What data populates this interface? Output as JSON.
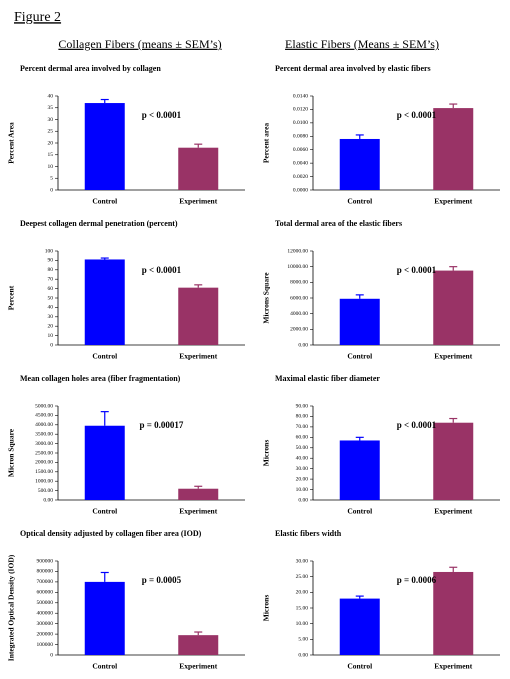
{
  "title": "Figure 2",
  "column_headers": [
    "Collagen Fibers (means ± SEM’s)",
    "Elastic Fibers (Means ± SEM’s)"
  ],
  "chart_data": [
    {
      "type": "bar",
      "title": "Percent dermal area involved by collagen",
      "ylabel": "Percent Area",
      "categories": [
        "Control",
        "Experiment"
      ],
      "values": [
        37,
        18
      ],
      "errors": [
        1.5,
        1.5
      ],
      "colors": [
        "#0000ff",
        "#993366"
      ],
      "annotation": "p < 0.0001",
      "ylim": [
        0,
        40
      ],
      "yticks": [
        0,
        5,
        10,
        15,
        20,
        25,
        30,
        35,
        40
      ]
    },
    {
      "type": "bar",
      "title": "Percent dermal area involved by elastic fibers",
      "ylabel": "Percent area",
      "categories": [
        "Control",
        "Experiment"
      ],
      "values": [
        0.0076,
        0.0122
      ],
      "errors": [
        0.0006,
        0.0006
      ],
      "colors": [
        "#0000ff",
        "#993366"
      ],
      "annotation": "p < 0.0001",
      "ylim": [
        0,
        0.014
      ],
      "yticks": [
        {
          "value": 0,
          "label": "0.0000"
        },
        {
          "value": 0.002,
          "label": "0.0020"
        },
        {
          "value": 0.004,
          "label": "0.0040"
        },
        {
          "value": 0.006,
          "label": "0.0060"
        },
        {
          "value": 0.008,
          "label": "0.0080"
        },
        {
          "value": 0.01,
          "label": "0.0100"
        },
        {
          "value": 0.012,
          "label": "0.0120"
        },
        {
          "value": 0.014,
          "label": "0.0140"
        }
      ]
    },
    {
      "type": "bar",
      "title": "Deepest collagen dermal penetration (percent)",
      "ylabel": "Percent",
      "categories": [
        "Control",
        "Experiment"
      ],
      "values": [
        91,
        61
      ],
      "errors": [
        1.5,
        3
      ],
      "colors": [
        "#0000ff",
        "#993366"
      ],
      "annotation": "p < 0.0001",
      "ylim": [
        0,
        100
      ],
      "yticks": [
        0,
        10,
        20,
        30,
        40,
        50,
        60,
        70,
        80,
        90,
        100
      ]
    },
    {
      "type": "bar",
      "title": "Total dermal area of the elastic fibers",
      "ylabel": "Microns Square",
      "categories": [
        "Control",
        "Experiment"
      ],
      "values": [
        5900,
        9500
      ],
      "errors": [
        500,
        500
      ],
      "colors": [
        "#0000ff",
        "#993366"
      ],
      "annotation": "p < 0.0001",
      "ylim": [
        0,
        12000
      ],
      "yticks": [
        {
          "value": 0,
          "label": "0.00"
        },
        {
          "value": 2000,
          "label": "2000.00"
        },
        {
          "value": 4000,
          "label": "4000.00"
        },
        {
          "value": 6000,
          "label": "6000.00"
        },
        {
          "value": 8000,
          "label": "8000.00"
        },
        {
          "value": 10000,
          "label": "10000.00"
        },
        {
          "value": 12000,
          "label": "12000.00"
        }
      ]
    },
    {
      "type": "bar",
      "title": "Mean collagen holes area (fiber fragmentation)",
      "ylabel": "Micron Square",
      "categories": [
        "Control",
        "Experiment"
      ],
      "values": [
        3950,
        600
      ],
      "errors": [
        750,
        130
      ],
      "colors": [
        "#0000ff",
        "#993366"
      ],
      "annotation": "p = 0.00017",
      "ylim": [
        0,
        5000
      ],
      "yticks": [
        {
          "value": 0,
          "label": "0.00"
        },
        {
          "value": 500,
          "label": "500.00"
        },
        {
          "value": 1000,
          "label": "1000.00"
        },
        {
          "value": 1500,
          "label": "1500.00"
        },
        {
          "value": 2000,
          "label": "2000.00"
        },
        {
          "value": 2500,
          "label": "2500.00"
        },
        {
          "value": 3000,
          "label": "3000.00"
        },
        {
          "value": 3500,
          "label": "3500.00"
        },
        {
          "value": 4000,
          "label": "4000.00"
        },
        {
          "value": 4500,
          "label": "4500.00"
        },
        {
          "value": 5000,
          "label": "5000.00"
        }
      ]
    },
    {
      "type": "bar",
      "title": "Maximal elastic fiber diameter",
      "ylabel": "Microns",
      "categories": [
        "Control",
        "Experiment"
      ],
      "values": [
        57,
        74
      ],
      "errors": [
        3,
        4
      ],
      "colors": [
        "#0000ff",
        "#993366"
      ],
      "annotation": "p < 0.0001",
      "ylim": [
        0,
        90
      ],
      "yticks": [
        {
          "value": 0,
          "label": "0.00"
        },
        {
          "value": 10,
          "label": "10.00"
        },
        {
          "value": 20,
          "label": "20.00"
        },
        {
          "value": 30,
          "label": "30.00"
        },
        {
          "value": 40,
          "label": "40.00"
        },
        {
          "value": 50,
          "label": "50.00"
        },
        {
          "value": 60,
          "label": "60.00"
        },
        {
          "value": 70,
          "label": "70.00"
        },
        {
          "value": 80,
          "label": "80.00"
        },
        {
          "value": 90,
          "label": "90.00"
        }
      ]
    },
    {
      "type": "bar",
      "title": "Optical density adjusted by collagen fiber area (IOD)",
      "ylabel": "Integrated Optical Density (IOD)",
      "categories": [
        "Control",
        "Experiment"
      ],
      "values": [
        700000,
        190000
      ],
      "errors": [
        90000,
        30000
      ],
      "colors": [
        "#0000ff",
        "#993366"
      ],
      "annotation": "p = 0.0005",
      "ylim": [
        0,
        900000
      ],
      "yticks": [
        0,
        100000,
        200000,
        300000,
        400000,
        500000,
        600000,
        700000,
        800000,
        900000
      ]
    },
    {
      "type": "bar",
      "title": "Elastic fibers width",
      "ylabel": "Microns",
      "categories": [
        "Control",
        "Experiment"
      ],
      "values": [
        18,
        26.5
      ],
      "errors": [
        0.8,
        1.5
      ],
      "colors": [
        "#0000ff",
        "#993366"
      ],
      "annotation": "p = 0.0006",
      "ylim": [
        0,
        30
      ],
      "yticks": [
        {
          "value": 0,
          "label": "0.00"
        },
        {
          "value": 5,
          "label": "5.00"
        },
        {
          "value": 10,
          "label": "10.00"
        },
        {
          "value": 15,
          "label": "15.00"
        },
        {
          "value": 20,
          "label": "20.00"
        },
        {
          "value": 25,
          "label": "25.00"
        },
        {
          "value": 30,
          "label": "30.00"
        }
      ]
    }
  ]
}
